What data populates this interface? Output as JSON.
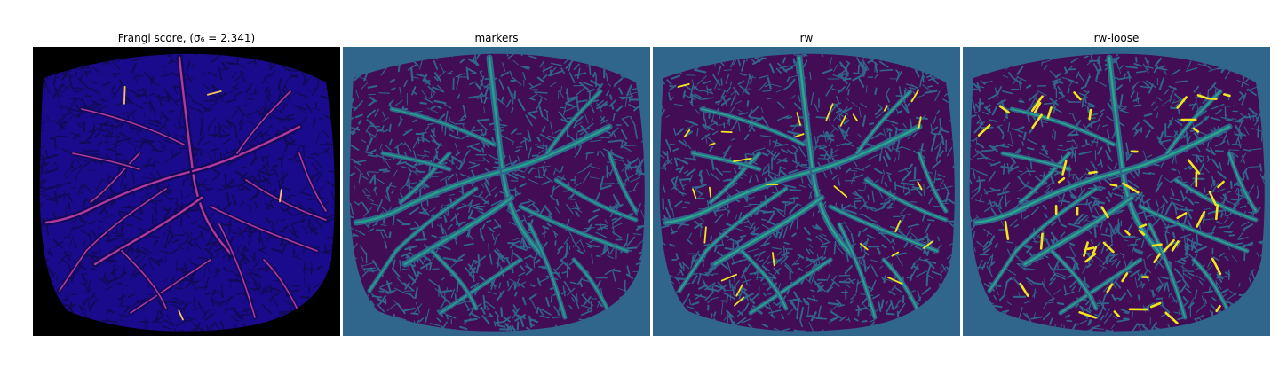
{
  "figure": {
    "panels": [
      {
        "title": "Frangi score, (σ₆ = 2.341)",
        "background": "#000000",
        "mask": "#1a0b8c",
        "texture": "#120a57",
        "vessel": "#b2379f",
        "highlight": "#f7c45a"
      },
      {
        "title": "markers",
        "background": "#31668c",
        "mask": "#420d54",
        "texture": "#31668c",
        "vessel": "#23a189"
      },
      {
        "title": "rw",
        "background": "#31668c",
        "mask": "#420d54",
        "texture": "#31668c",
        "vessel": "#27a88a",
        "highlight": "#f2e51f"
      },
      {
        "title": "rw-loose",
        "background": "#31668c",
        "mask": "#420d54",
        "texture": "#31668c",
        "vessel": "#27a88a",
        "highlight": "#f2e51f"
      }
    ]
  }
}
